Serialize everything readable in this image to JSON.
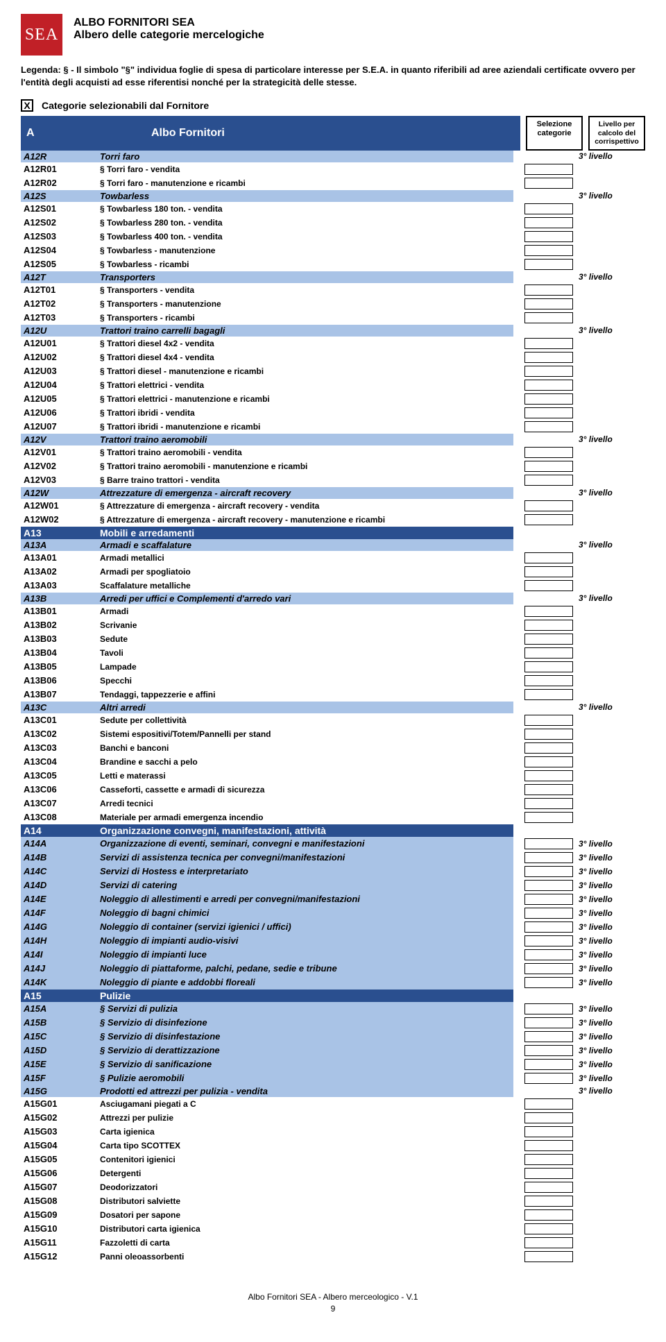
{
  "logo_text": "SEA",
  "title1": "ALBO FORNITORI SEA",
  "title2": "Albero delle categorie mercelogiche",
  "legend": "Legenda: § - Il simbolo \"§\" individua foglie di spesa di particolare interesse per  S.E.A. in quanto riferibili ad aree aziendali certificate ovvero per l'entità degli acquisti ad esse riferentisi nonché per la strategicità delle stesse.",
  "checkbox_mark": "X",
  "selectable_label": "Categorie selezionabili dal Fornitore",
  "header": {
    "code": "A",
    "title": "Albo Fornitori",
    "sel_box": "Selezione categorie",
    "lvl_box": "Livello per calcolo del corrispettivo"
  },
  "level3": "3° livello",
  "rows": [
    {
      "type": "light",
      "code": "A12R",
      "desc": "Torri faro",
      "sel": false,
      "lvl": true
    },
    {
      "type": "leaf",
      "code": "A12R01",
      "desc": "§ Torri faro - vendita",
      "sel": true,
      "lvl": false
    },
    {
      "type": "leaf",
      "code": "A12R02",
      "desc": "§ Torri faro - manutenzione e ricambi",
      "sel": true,
      "lvl": false
    },
    {
      "type": "light",
      "code": "A12S",
      "desc": "Towbarless",
      "sel": false,
      "lvl": true
    },
    {
      "type": "leaf",
      "code": "A12S01",
      "desc": "§ Towbarless 180 ton. - vendita",
      "sel": true,
      "lvl": false
    },
    {
      "type": "leaf",
      "code": "A12S02",
      "desc": "§ Towbarless 280 ton. - vendita",
      "sel": true,
      "lvl": false
    },
    {
      "type": "leaf",
      "code": "A12S03",
      "desc": "§ Towbarless 400 ton. - vendita",
      "sel": true,
      "lvl": false
    },
    {
      "type": "leaf",
      "code": "A12S04",
      "desc": "§ Towbarless - manutenzione",
      "sel": true,
      "lvl": false
    },
    {
      "type": "leaf",
      "code": "A12S05",
      "desc": "§ Towbarless - ricambi",
      "sel": true,
      "lvl": false
    },
    {
      "type": "light",
      "code": "A12T",
      "desc": "Transporters",
      "sel": false,
      "lvl": true
    },
    {
      "type": "leaf",
      "code": "A12T01",
      "desc": "§ Transporters - vendita",
      "sel": true,
      "lvl": false
    },
    {
      "type": "leaf",
      "code": "A12T02",
      "desc": "§ Transporters - manutenzione",
      "sel": true,
      "lvl": false
    },
    {
      "type": "leaf",
      "code": "A12T03",
      "desc": "§ Transporters - ricambi",
      "sel": true,
      "lvl": false
    },
    {
      "type": "light",
      "code": "A12U",
      "desc": "Trattori traino carrelli bagagli",
      "sel": false,
      "lvl": true
    },
    {
      "type": "leaf",
      "code": "A12U01",
      "desc": "§ Trattori diesel 4x2 - vendita",
      "sel": true,
      "lvl": false
    },
    {
      "type": "leaf",
      "code": "A12U02",
      "desc": "§ Trattori diesel 4x4 - vendita",
      "sel": true,
      "lvl": false
    },
    {
      "type": "leaf",
      "code": "A12U03",
      "desc": "§ Trattori diesel - manutenzione e ricambi",
      "sel": true,
      "lvl": false
    },
    {
      "type": "leaf",
      "code": "A12U04",
      "desc": "§ Trattori elettrici - vendita",
      "sel": true,
      "lvl": false
    },
    {
      "type": "leaf",
      "code": "A12U05",
      "desc": "§ Trattori elettrici - manutenzione e ricambi",
      "sel": true,
      "lvl": false
    },
    {
      "type": "leaf",
      "code": "A12U06",
      "desc": "§ Trattori ibridi - vendita",
      "sel": true,
      "lvl": false
    },
    {
      "type": "leaf",
      "code": "A12U07",
      "desc": "§ Trattori ibridi - manutenzione e ricambi",
      "sel": true,
      "lvl": false
    },
    {
      "type": "light",
      "code": "A12V",
      "desc": "Trattori traino aeromobili",
      "sel": false,
      "lvl": true
    },
    {
      "type": "leaf",
      "code": "A12V01",
      "desc": "§ Trattori traino aeromobili - vendita",
      "sel": true,
      "lvl": false
    },
    {
      "type": "leaf",
      "code": "A12V02",
      "desc": "§ Trattori traino aeromobili - manutenzione e ricambi",
      "sel": true,
      "lvl": false
    },
    {
      "type": "leaf",
      "code": "A12V03",
      "desc": "§ Barre traino trattori - vendita",
      "sel": true,
      "lvl": false
    },
    {
      "type": "light",
      "code": "A12W",
      "desc": "Attrezzature di emergenza - aircraft recovery",
      "sel": false,
      "lvl": true
    },
    {
      "type": "leaf",
      "code": "A12W01",
      "desc": "§ Attrezzature di emergenza - aircraft recovery - vendita",
      "sel": true,
      "lvl": false
    },
    {
      "type": "leaf",
      "code": "A12W02",
      "desc": "§ Attrezzature di emergenza - aircraft recovery - manutenzione e ricambi",
      "sel": true,
      "lvl": false
    },
    {
      "type": "dark",
      "code": "A13",
      "desc": "Mobili e arredamenti",
      "sel": false,
      "lvl": false
    },
    {
      "type": "light",
      "code": "A13A",
      "desc": "Armadi e scaffalature",
      "sel": false,
      "lvl": true
    },
    {
      "type": "leaf",
      "code": "A13A01",
      "desc": "Armadi metallici",
      "sel": true,
      "lvl": false
    },
    {
      "type": "leaf",
      "code": "A13A02",
      "desc": "Armadi per spogliatoio",
      "sel": true,
      "lvl": false
    },
    {
      "type": "leaf",
      "code": "A13A03",
      "desc": "Scaffalature metalliche",
      "sel": true,
      "lvl": false
    },
    {
      "type": "light",
      "code": "A13B",
      "desc": "Arredi per uffici e Complementi d'arredo vari",
      "sel": false,
      "lvl": true
    },
    {
      "type": "leaf",
      "code": "A13B01",
      "desc": "Armadi",
      "sel": true,
      "lvl": false
    },
    {
      "type": "leaf",
      "code": "A13B02",
      "desc": "Scrivanie",
      "sel": true,
      "lvl": false
    },
    {
      "type": "leaf",
      "code": "A13B03",
      "desc": "Sedute",
      "sel": true,
      "lvl": false
    },
    {
      "type": "leaf",
      "code": "A13B04",
      "desc": "Tavoli",
      "sel": true,
      "lvl": false
    },
    {
      "type": "leaf",
      "code": "A13B05",
      "desc": "Lampade",
      "sel": true,
      "lvl": false
    },
    {
      "type": "leaf",
      "code": "A13B06",
      "desc": "Specchi",
      "sel": true,
      "lvl": false
    },
    {
      "type": "leaf",
      "code": "A13B07",
      "desc": "Tendaggi, tappezzerie e affini",
      "sel": true,
      "lvl": false
    },
    {
      "type": "light",
      "code": "A13C",
      "desc": "Altri arredi",
      "sel": false,
      "lvl": true
    },
    {
      "type": "leaf",
      "code": "A13C01",
      "desc": "Sedute per collettività",
      "sel": true,
      "lvl": false
    },
    {
      "type": "leaf",
      "code": "A13C02",
      "desc": "Sistemi espositivi/Totem/Pannelli per stand",
      "sel": true,
      "lvl": false
    },
    {
      "type": "leaf",
      "code": "A13C03",
      "desc": "Banchi e banconi",
      "sel": true,
      "lvl": false
    },
    {
      "type": "leaf",
      "code": "A13C04",
      "desc": "Brandine e sacchi a pelo",
      "sel": true,
      "lvl": false
    },
    {
      "type": "leaf",
      "code": "A13C05",
      "desc": "Letti e materassi",
      "sel": true,
      "lvl": false
    },
    {
      "type": "leaf",
      "code": "A13C06",
      "desc": "Casseforti, cassette e armadi di sicurezza",
      "sel": true,
      "lvl": false
    },
    {
      "type": "leaf",
      "code": "A13C07",
      "desc": "Arredi tecnici",
      "sel": true,
      "lvl": false
    },
    {
      "type": "leaf",
      "code": "A13C08",
      "desc": "Materiale per armadi emergenza incendio",
      "sel": true,
      "lvl": false
    },
    {
      "type": "dark",
      "code": "A14",
      "desc": "Organizzazione convegni, manifestazioni, attività",
      "sel": false,
      "lvl": false
    },
    {
      "type": "light",
      "code": "A14A",
      "desc": "Organizzazione di eventi, seminari, convegni e manifestazioni",
      "sel": true,
      "lvl": true
    },
    {
      "type": "light",
      "code": "A14B",
      "desc": "Servizi di assistenza tecnica per convegni/manifestazioni",
      "sel": true,
      "lvl": true
    },
    {
      "type": "light",
      "code": "A14C",
      "desc": "Servizi di Hostess e interpretariato",
      "sel": true,
      "lvl": true
    },
    {
      "type": "light",
      "code": "A14D",
      "desc": "Servizi di catering",
      "sel": true,
      "lvl": true
    },
    {
      "type": "light",
      "code": "A14E",
      "desc": "Noleggio di allestimenti e arredi per convegni/manifestazioni",
      "sel": true,
      "lvl": true
    },
    {
      "type": "light",
      "code": "A14F",
      "desc": "Noleggio di bagni chimici",
      "sel": true,
      "lvl": true
    },
    {
      "type": "light",
      "code": "A14G",
      "desc": "Noleggio di container (servizi igienici / uffici)",
      "sel": true,
      "lvl": true
    },
    {
      "type": "light",
      "code": "A14H",
      "desc": "Noleggio di impianti audio-visivi",
      "sel": true,
      "lvl": true
    },
    {
      "type": "light",
      "code": "A14I",
      "desc": "Noleggio di impianti luce",
      "sel": true,
      "lvl": true
    },
    {
      "type": "light",
      "code": "A14J",
      "desc": "Noleggio di piattaforme, palchi, pedane, sedie e tribune",
      "sel": true,
      "lvl": true
    },
    {
      "type": "light",
      "code": "A14K",
      "desc": "Noleggio di piante e addobbi floreali",
      "sel": true,
      "lvl": true
    },
    {
      "type": "dark",
      "code": "A15",
      "desc": "Pulizie",
      "sel": false,
      "lvl": false
    },
    {
      "type": "light",
      "code": "A15A",
      "desc": "§ Servizi di pulizia",
      "sel": true,
      "lvl": true
    },
    {
      "type": "light",
      "code": "A15B",
      "desc": "§ Servizio di disinfezione",
      "sel": true,
      "lvl": true
    },
    {
      "type": "light",
      "code": "A15C",
      "desc": "§ Servizio di disinfestazione",
      "sel": true,
      "lvl": true
    },
    {
      "type": "light",
      "code": "A15D",
      "desc": "§ Servizio di derattizzazione",
      "sel": true,
      "lvl": true
    },
    {
      "type": "light",
      "code": "A15E",
      "desc": "§ Servizio di sanificazione",
      "sel": true,
      "lvl": true
    },
    {
      "type": "light",
      "code": "A15F",
      "desc": "§ Pulizie aeromobili",
      "sel": true,
      "lvl": true
    },
    {
      "type": "light",
      "code": "A15G",
      "desc": "Prodotti ed attrezzi per pulizia - vendita",
      "sel": false,
      "lvl": true
    },
    {
      "type": "leaf",
      "code": "A15G01",
      "desc": "Asciugamani piegati a C",
      "sel": true,
      "lvl": false
    },
    {
      "type": "leaf",
      "code": "A15G02",
      "desc": "Attrezzi per pulizie",
      "sel": true,
      "lvl": false
    },
    {
      "type": "leaf",
      "code": "A15G03",
      "desc": "Carta igienica",
      "sel": true,
      "lvl": false
    },
    {
      "type": "leaf",
      "code": "A15G04",
      "desc": "Carta tipo SCOTTEX",
      "sel": true,
      "lvl": false
    },
    {
      "type": "leaf",
      "code": "A15G05",
      "desc": "Contenitori igienici",
      "sel": true,
      "lvl": false
    },
    {
      "type": "leaf",
      "code": "A15G06",
      "desc": "Detergenti",
      "sel": true,
      "lvl": false
    },
    {
      "type": "leaf",
      "code": "A15G07",
      "desc": "Deodorizzatori",
      "sel": true,
      "lvl": false
    },
    {
      "type": "leaf",
      "code": "A15G08",
      "desc": "Distributori salviette",
      "sel": true,
      "lvl": false
    },
    {
      "type": "leaf",
      "code": "A15G09",
      "desc": "Dosatori per sapone",
      "sel": true,
      "lvl": false
    },
    {
      "type": "leaf",
      "code": "A15G10",
      "desc": "Distributori carta igienica",
      "sel": true,
      "lvl": false
    },
    {
      "type": "leaf",
      "code": "A15G11",
      "desc": "Fazzoletti di carta",
      "sel": true,
      "lvl": false
    },
    {
      "type": "leaf",
      "code": "A15G12",
      "desc": "Panni oleoassorbenti",
      "sel": true,
      "lvl": false
    }
  ],
  "footer_line1": "Albo Fornitori SEA - Albero merceologico - V.1",
  "footer_page": "9"
}
